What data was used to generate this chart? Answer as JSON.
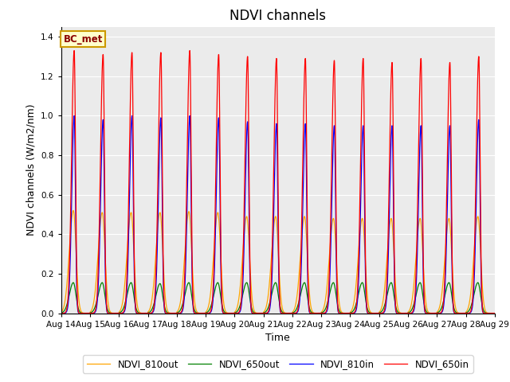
{
  "title": "NDVI channels",
  "xlabel": "Time",
  "ylabel": "NDVI channels (W/m2/nm)",
  "annotation": "BC_met",
  "legend": [
    "NDVI_650in",
    "NDVI_810in",
    "NDVI_650out",
    "NDVI_810out"
  ],
  "colors": [
    "red",
    "blue",
    "green",
    "orange"
  ],
  "ylim": [
    0,
    1.45
  ],
  "n_cycles": 15,
  "peak_650in": [
    1.33,
    1.31,
    1.32,
    1.32,
    1.33,
    1.31,
    1.3,
    1.29,
    1.29,
    1.28,
    1.29,
    1.27,
    1.29,
    1.27,
    1.3
  ],
  "peak_810in": [
    1.0,
    0.98,
    1.0,
    0.99,
    1.0,
    0.99,
    0.97,
    0.96,
    0.96,
    0.95,
    0.95,
    0.95,
    0.95,
    0.95,
    0.98
  ],
  "peak_650out": [
    0.155,
    0.155,
    0.155,
    0.15,
    0.155,
    0.155,
    0.155,
    0.155,
    0.155,
    0.155,
    0.155,
    0.155,
    0.155,
    0.155,
    0.155
  ],
  "peak_810out": [
    0.52,
    0.51,
    0.51,
    0.51,
    0.515,
    0.51,
    0.49,
    0.49,
    0.49,
    0.48,
    0.48,
    0.48,
    0.48,
    0.48,
    0.49
  ],
  "x_tick_labels": [
    "Aug 14",
    "Aug 15",
    "Aug 16",
    "Aug 17",
    "Aug 18",
    "Aug 19",
    "Aug 20",
    "Aug 21",
    "Aug 22",
    "Aug 23",
    "Aug 24",
    "Aug 25",
    "Aug 26",
    "Aug 27",
    "Aug 28",
    "Aug 29"
  ],
  "bg_color": "#ebebeb",
  "fig_bg": "#ffffff",
  "title_fontsize": 12,
  "label_fontsize": 9,
  "tick_fontsize": 7.5
}
